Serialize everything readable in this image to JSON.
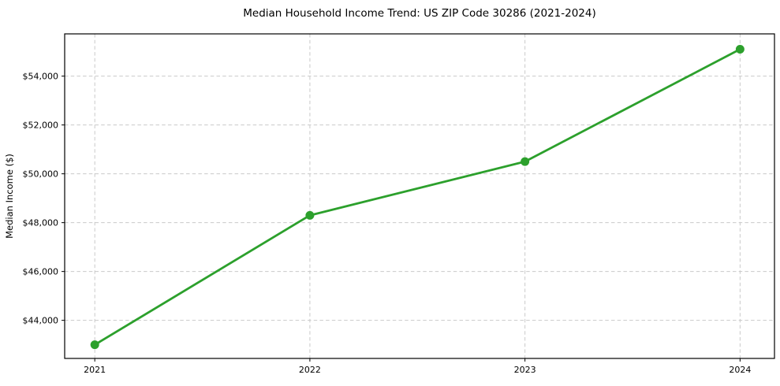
{
  "chart_data": {
    "type": "line",
    "title": "Median Household Income Trend: US ZIP Code 30286 (2021-2024)",
    "ylabel": "Median Income ($)",
    "xlabel": "",
    "x": [
      2021,
      2022,
      2023,
      2024
    ],
    "xtick_labels": [
      "2021",
      "2022",
      "2023",
      "2024"
    ],
    "values": [
      43000,
      48300,
      50500,
      55100
    ],
    "yticks": [
      44000,
      46000,
      48000,
      50000,
      52000,
      54000
    ],
    "ytick_labels": [
      "$44,000",
      "$46,000",
      "$48,000",
      "$50,000",
      "$52,000",
      "$54,000"
    ],
    "xlim": [
      2020.86,
      2024.16
    ],
    "ylim": [
      42440,
      55730
    ],
    "grid": true,
    "grid_style": "dashed",
    "legend_position": "none",
    "colors": {
      "line": "#2ca02c",
      "marker": "#2ca02c",
      "grid": "#c9c9c9",
      "axis": "#000000",
      "text": "#000000",
      "background": "#ffffff"
    }
  }
}
